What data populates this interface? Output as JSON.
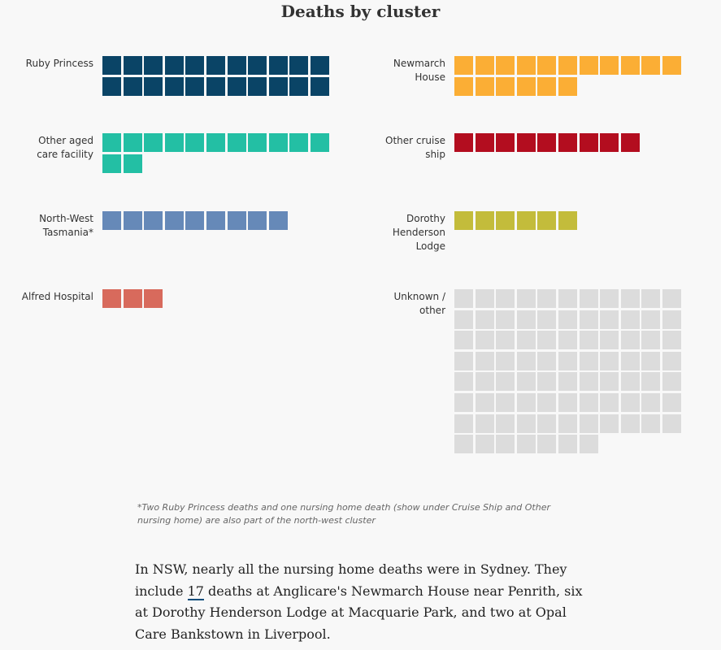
{
  "chart_data": {
    "type": "waffle",
    "title": "Deaths by cluster",
    "units_per_square": 1,
    "groups": [
      {
        "name": "Ruby Princess",
        "value": 22,
        "color": "#0a4466"
      },
      {
        "name": "Newmarch\nHouse",
        "value": 17,
        "color": "#fbae35"
      },
      {
        "name": "Other aged\ncare facility",
        "value": 13,
        "color": "#23bfa4"
      },
      {
        "name": "Other cruise\nship",
        "value": 9,
        "color": "#b30d1f"
      },
      {
        "name": "North-West\nTasmania*",
        "value": 9,
        "color": "#6689b8"
      },
      {
        "name": "Dorothy\nHenderson\nLodge",
        "value": 6,
        "color": "#c3bc3b"
      },
      {
        "name": "Alfred Hospital",
        "value": 3,
        "color": "#d86a5c"
      },
      {
        "name": "Unknown /\nother",
        "value": 84,
        "color": "#dcdcdc"
      }
    ]
  },
  "footnote": "*Two Ruby Princess deaths and one nursing home death (show under Cruise Ship and Other nursing home) are also part of the north-west cluster",
  "paragraph": {
    "before": "In NSW, nearly all the nursing home deaths were in Sydney. They include ",
    "link": "17",
    "after": " deaths at Anglicare's Newmarch House near Penrith, six at Dorothy Henderson Lodge at Macquarie Park, and two at Opal Care Bankstown in Liverpool."
  }
}
